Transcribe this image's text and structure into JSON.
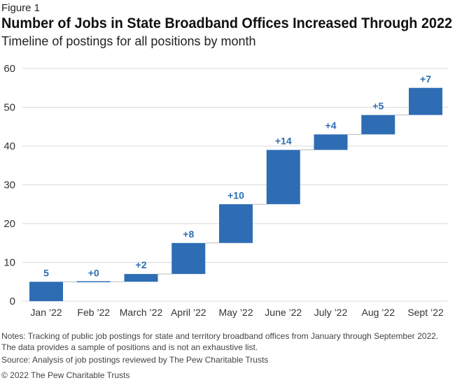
{
  "figure_label": "Figure 1",
  "notes": "Notes: Tracking of public job postings for state and territory broadband offices from January through September 2022. The data provides a sample of positions and is not an exhaustive list.",
  "source": "Source: Analysis of job postings reviewed by The Pew Charitable Trusts",
  "copyright": "© 2022 The Pew Charitable Trusts",
  "chart_data": {
    "type": "waterfall",
    "title": "Number of Jobs in State Broadband Offices Increased Through 2022",
    "subtitle": "Timeline of postings for all positions by month",
    "categories": [
      "Jan ’22",
      "Feb ’22",
      "March ’22",
      "April ’22",
      "May ’22",
      "June ’22",
      "July ’22",
      "Aug ’22",
      "Sept ’22"
    ],
    "values": [
      5,
      0,
      2,
      8,
      10,
      14,
      4,
      5,
      7
    ],
    "data_labels": [
      "5",
      "+0",
      "+2",
      "+8",
      "+10",
      "+14",
      "+4",
      "+5",
      "+7"
    ],
    "ylim": [
      0,
      60
    ],
    "yticks": [
      0,
      10,
      20,
      30,
      40,
      50,
      60
    ],
    "grid": true,
    "bar_color": "#2e6db4",
    "label_color": "#2e6db4"
  }
}
